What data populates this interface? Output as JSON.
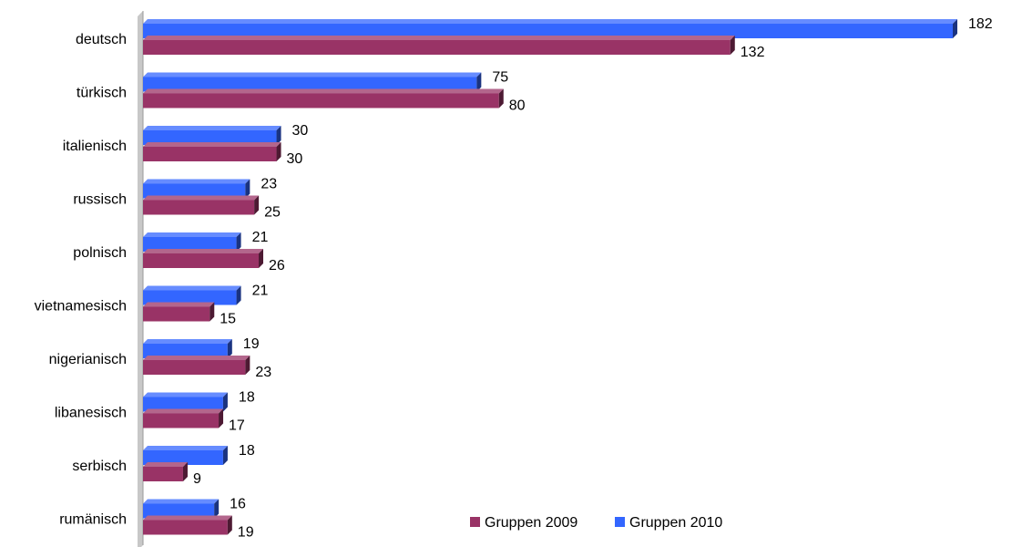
{
  "chart_data": {
    "type": "bar",
    "orientation": "horizontal",
    "style": "3d-clustered",
    "categories": [
      "deutsch",
      "türkisch",
      "italienisch",
      "russisch",
      "polnisch",
      "vietnamesisch",
      "nigerianisch",
      "libanesisch",
      "serbisch",
      "rumänisch"
    ],
    "series": [
      {
        "name": "Gruppen 2010",
        "color": "#3366ff",
        "values": [
          182,
          75,
          30,
          23,
          21,
          21,
          19,
          18,
          18,
          16
        ]
      },
      {
        "name": "Gruppen 2009",
        "color": "#993366",
        "values": [
          132,
          80,
          30,
          25,
          26,
          15,
          23,
          17,
          9,
          19
        ]
      }
    ],
    "legend_order": [
      "Gruppen 2009",
      "Gruppen 2010"
    ],
    "legend_position": "bottom-right",
    "xlim": [
      0,
      182
    ],
    "grid": false
  }
}
